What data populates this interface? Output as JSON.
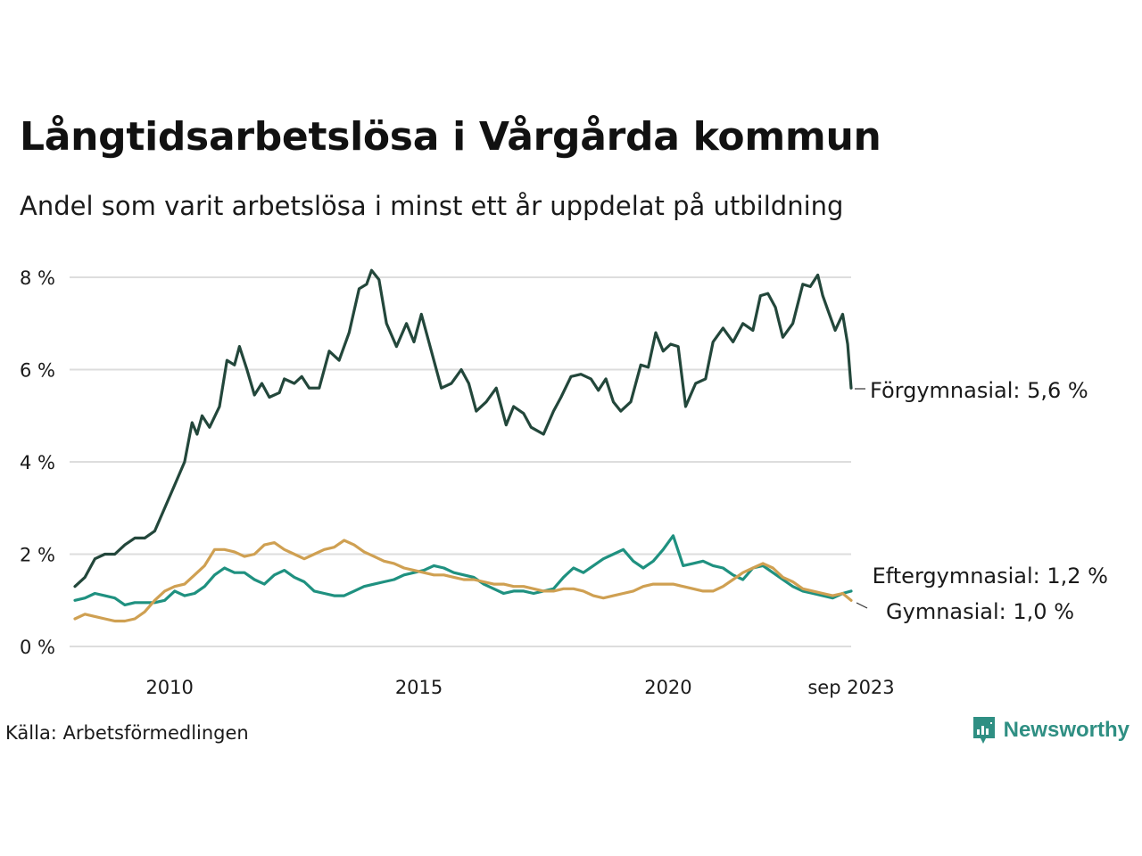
{
  "header": {
    "title": "Långtidsarbetslösa i Vårgårda kommun",
    "subtitle": "Andel som varit arbetslösa i minst ett år uppdelat på utbildning"
  },
  "footer": {
    "source": "Källa: Arbetsförmedlingen",
    "brand": "Newsworthy",
    "brand_icon": "newsworthy-logo-icon"
  },
  "colors": {
    "forgymnasial": "#23473b",
    "eftergymnasial": "#1f9180",
    "gymnasial": "#cfa052",
    "grid": "#dddddd"
  },
  "chart_data": {
    "type": "line",
    "title": "Långtidsarbetslösa i Vårgårda kommun",
    "subtitle": "Andel som varit arbetslösa i minst ett år uppdelat på utbildning",
    "xlabel": "",
    "ylabel": "",
    "x_range": [
      2008.1,
      2023.67
    ],
    "ylim": [
      0,
      8
    ],
    "y_ticks": [
      0,
      2,
      4,
      6,
      8
    ],
    "y_tick_labels": [
      "0 %",
      "2 %",
      "4 %",
      "6 %",
      "8 %"
    ],
    "x_ticks": [
      2010,
      2015,
      2020,
      2023.67
    ],
    "x_tick_labels": [
      "2010",
      "2015",
      "2020",
      "sep 2023"
    ],
    "grid": "horizontal",
    "series": [
      {
        "name": "Förgymnasial",
        "end_label": "Förgymnasial: 5,6 %",
        "color_key": "forgymnasial",
        "points": [
          [
            2008.1,
            1.3
          ],
          [
            2008.3,
            1.5
          ],
          [
            2008.5,
            1.9
          ],
          [
            2008.7,
            2.0
          ],
          [
            2008.9,
            2.0
          ],
          [
            2009.1,
            2.2
          ],
          [
            2009.3,
            2.35
          ],
          [
            2009.5,
            2.35
          ],
          [
            2009.7,
            2.5
          ],
          [
            2009.9,
            3.0
          ],
          [
            2010.1,
            3.5
          ],
          [
            2010.3,
            4.0
          ],
          [
            2010.45,
            4.85
          ],
          [
            2010.55,
            4.6
          ],
          [
            2010.65,
            5.0
          ],
          [
            2010.8,
            4.75
          ],
          [
            2011.0,
            5.2
          ],
          [
            2011.15,
            6.2
          ],
          [
            2011.3,
            6.1
          ],
          [
            2011.4,
            6.5
          ],
          [
            2011.55,
            6.0
          ],
          [
            2011.7,
            5.45
          ],
          [
            2011.85,
            5.7
          ],
          [
            2012.0,
            5.4
          ],
          [
            2012.2,
            5.5
          ],
          [
            2012.3,
            5.8
          ],
          [
            2012.5,
            5.7
          ],
          [
            2012.65,
            5.85
          ],
          [
            2012.8,
            5.6
          ],
          [
            2013.0,
            5.6
          ],
          [
            2013.2,
            6.4
          ],
          [
            2013.4,
            6.2
          ],
          [
            2013.6,
            6.8
          ],
          [
            2013.8,
            7.75
          ],
          [
            2013.95,
            7.85
          ],
          [
            2014.05,
            8.15
          ],
          [
            2014.2,
            7.95
          ],
          [
            2014.35,
            7.0
          ],
          [
            2014.55,
            6.5
          ],
          [
            2014.75,
            7.0
          ],
          [
            2014.9,
            6.6
          ],
          [
            2015.05,
            7.2
          ],
          [
            2015.25,
            6.4
          ],
          [
            2015.45,
            5.6
          ],
          [
            2015.65,
            5.7
          ],
          [
            2015.85,
            6.0
          ],
          [
            2016.0,
            5.7
          ],
          [
            2016.15,
            5.1
          ],
          [
            2016.35,
            5.3
          ],
          [
            2016.55,
            5.6
          ],
          [
            2016.75,
            4.8
          ],
          [
            2016.9,
            5.2
          ],
          [
            2017.1,
            5.05
          ],
          [
            2017.25,
            4.75
          ],
          [
            2017.5,
            4.6
          ],
          [
            2017.7,
            5.1
          ],
          [
            2017.85,
            5.4
          ],
          [
            2018.05,
            5.85
          ],
          [
            2018.25,
            5.9
          ],
          [
            2018.45,
            5.8
          ],
          [
            2018.6,
            5.55
          ],
          [
            2018.75,
            5.8
          ],
          [
            2018.9,
            5.3
          ],
          [
            2019.05,
            5.1
          ],
          [
            2019.25,
            5.3
          ],
          [
            2019.45,
            6.1
          ],
          [
            2019.6,
            6.05
          ],
          [
            2019.75,
            6.8
          ],
          [
            2019.9,
            6.4
          ],
          [
            2020.05,
            6.55
          ],
          [
            2020.2,
            6.5
          ],
          [
            2020.35,
            5.2
          ],
          [
            2020.55,
            5.7
          ],
          [
            2020.75,
            5.8
          ],
          [
            2020.9,
            6.6
          ],
          [
            2021.1,
            6.9
          ],
          [
            2021.3,
            6.6
          ],
          [
            2021.5,
            7.0
          ],
          [
            2021.7,
            6.85
          ],
          [
            2021.85,
            7.6
          ],
          [
            2022.0,
            7.65
          ],
          [
            2022.15,
            7.35
          ],
          [
            2022.3,
            6.7
          ],
          [
            2022.5,
            7.0
          ],
          [
            2022.7,
            7.85
          ],
          [
            2022.85,
            7.8
          ],
          [
            2023.0,
            8.05
          ],
          [
            2023.1,
            7.6
          ],
          [
            2023.2,
            7.3
          ],
          [
            2023.35,
            6.85
          ],
          [
            2023.5,
            7.2
          ],
          [
            2023.6,
            6.55
          ],
          [
            2023.67,
            5.6
          ]
        ]
      },
      {
        "name": "Eftergymnasial",
        "end_label": "Eftergymnasial: 1,2 %",
        "color_key": "eftergymnasial",
        "points": [
          [
            2008.1,
            1.0
          ],
          [
            2008.3,
            1.05
          ],
          [
            2008.5,
            1.15
          ],
          [
            2008.7,
            1.1
          ],
          [
            2008.9,
            1.05
          ],
          [
            2009.1,
            0.9
          ],
          [
            2009.3,
            0.95
          ],
          [
            2009.5,
            0.95
          ],
          [
            2009.7,
            0.95
          ],
          [
            2009.9,
            1.0
          ],
          [
            2010.1,
            1.2
          ],
          [
            2010.3,
            1.1
          ],
          [
            2010.5,
            1.15
          ],
          [
            2010.7,
            1.3
          ],
          [
            2010.9,
            1.55
          ],
          [
            2011.1,
            1.7
          ],
          [
            2011.3,
            1.6
          ],
          [
            2011.5,
            1.6
          ],
          [
            2011.7,
            1.45
          ],
          [
            2011.9,
            1.35
          ],
          [
            2012.1,
            1.55
          ],
          [
            2012.3,
            1.65
          ],
          [
            2012.5,
            1.5
          ],
          [
            2012.7,
            1.4
          ],
          [
            2012.9,
            1.2
          ],
          [
            2013.1,
            1.15
          ],
          [
            2013.3,
            1.1
          ],
          [
            2013.5,
            1.1
          ],
          [
            2013.7,
            1.2
          ],
          [
            2013.9,
            1.3
          ],
          [
            2014.1,
            1.35
          ],
          [
            2014.3,
            1.4
          ],
          [
            2014.5,
            1.45
          ],
          [
            2014.7,
            1.55
          ],
          [
            2014.9,
            1.6
          ],
          [
            2015.1,
            1.65
          ],
          [
            2015.3,
            1.75
          ],
          [
            2015.5,
            1.7
          ],
          [
            2015.7,
            1.6
          ],
          [
            2015.9,
            1.55
          ],
          [
            2016.1,
            1.5
          ],
          [
            2016.3,
            1.35
          ],
          [
            2016.5,
            1.25
          ],
          [
            2016.7,
            1.15
          ],
          [
            2016.9,
            1.2
          ],
          [
            2017.1,
            1.2
          ],
          [
            2017.3,
            1.15
          ],
          [
            2017.5,
            1.2
          ],
          [
            2017.7,
            1.25
          ],
          [
            2017.9,
            1.5
          ],
          [
            2018.1,
            1.7
          ],
          [
            2018.3,
            1.6
          ],
          [
            2018.5,
            1.75
          ],
          [
            2018.7,
            1.9
          ],
          [
            2018.9,
            2.0
          ],
          [
            2019.1,
            2.1
          ],
          [
            2019.3,
            1.85
          ],
          [
            2019.5,
            1.7
          ],
          [
            2019.7,
            1.85
          ],
          [
            2019.9,
            2.1
          ],
          [
            2020.1,
            2.4
          ],
          [
            2020.3,
            1.75
          ],
          [
            2020.5,
            1.8
          ],
          [
            2020.7,
            1.85
          ],
          [
            2020.9,
            1.75
          ],
          [
            2021.1,
            1.7
          ],
          [
            2021.3,
            1.55
          ],
          [
            2021.5,
            1.45
          ],
          [
            2021.7,
            1.7
          ],
          [
            2021.9,
            1.75
          ],
          [
            2022.1,
            1.6
          ],
          [
            2022.3,
            1.45
          ],
          [
            2022.5,
            1.3
          ],
          [
            2022.7,
            1.2
          ],
          [
            2022.9,
            1.15
          ],
          [
            2023.1,
            1.1
          ],
          [
            2023.3,
            1.05
          ],
          [
            2023.5,
            1.15
          ],
          [
            2023.67,
            1.2
          ]
        ]
      },
      {
        "name": "Gymnasial",
        "end_label": "Gymnasial: 1,0 %",
        "color_key": "gymnasial",
        "points": [
          [
            2008.1,
            0.6
          ],
          [
            2008.3,
            0.7
          ],
          [
            2008.5,
            0.65
          ],
          [
            2008.7,
            0.6
          ],
          [
            2008.9,
            0.55
          ],
          [
            2009.1,
            0.55
          ],
          [
            2009.3,
            0.6
          ],
          [
            2009.5,
            0.75
          ],
          [
            2009.7,
            1.0
          ],
          [
            2009.9,
            1.2
          ],
          [
            2010.1,
            1.3
          ],
          [
            2010.3,
            1.35
          ],
          [
            2010.5,
            1.55
          ],
          [
            2010.7,
            1.75
          ],
          [
            2010.9,
            2.1
          ],
          [
            2011.1,
            2.1
          ],
          [
            2011.3,
            2.05
          ],
          [
            2011.5,
            1.95
          ],
          [
            2011.7,
            2.0
          ],
          [
            2011.9,
            2.2
          ],
          [
            2012.1,
            2.25
          ],
          [
            2012.3,
            2.1
          ],
          [
            2012.5,
            2.0
          ],
          [
            2012.7,
            1.9
          ],
          [
            2012.9,
            2.0
          ],
          [
            2013.1,
            2.1
          ],
          [
            2013.3,
            2.15
          ],
          [
            2013.5,
            2.3
          ],
          [
            2013.7,
            2.2
          ],
          [
            2013.9,
            2.05
          ],
          [
            2014.1,
            1.95
          ],
          [
            2014.3,
            1.85
          ],
          [
            2014.5,
            1.8
          ],
          [
            2014.7,
            1.7
          ],
          [
            2014.9,
            1.65
          ],
          [
            2015.1,
            1.6
          ],
          [
            2015.3,
            1.55
          ],
          [
            2015.5,
            1.55
          ],
          [
            2015.7,
            1.5
          ],
          [
            2015.9,
            1.45
          ],
          [
            2016.1,
            1.45
          ],
          [
            2016.3,
            1.4
          ],
          [
            2016.5,
            1.35
          ],
          [
            2016.7,
            1.35
          ],
          [
            2016.9,
            1.3
          ],
          [
            2017.1,
            1.3
          ],
          [
            2017.3,
            1.25
          ],
          [
            2017.5,
            1.2
          ],
          [
            2017.7,
            1.2
          ],
          [
            2017.9,
            1.25
          ],
          [
            2018.1,
            1.25
          ],
          [
            2018.3,
            1.2
          ],
          [
            2018.5,
            1.1
          ],
          [
            2018.7,
            1.05
          ],
          [
            2018.9,
            1.1
          ],
          [
            2019.1,
            1.15
          ],
          [
            2019.3,
            1.2
          ],
          [
            2019.5,
            1.3
          ],
          [
            2019.7,
            1.35
          ],
          [
            2019.9,
            1.35
          ],
          [
            2020.1,
            1.35
          ],
          [
            2020.3,
            1.3
          ],
          [
            2020.5,
            1.25
          ],
          [
            2020.7,
            1.2
          ],
          [
            2020.9,
            1.2
          ],
          [
            2021.1,
            1.3
          ],
          [
            2021.3,
            1.45
          ],
          [
            2021.5,
            1.6
          ],
          [
            2021.7,
            1.7
          ],
          [
            2021.9,
            1.8
          ],
          [
            2022.1,
            1.7
          ],
          [
            2022.3,
            1.5
          ],
          [
            2022.5,
            1.4
          ],
          [
            2022.7,
            1.25
          ],
          [
            2022.9,
            1.2
          ],
          [
            2023.1,
            1.15
          ],
          [
            2023.3,
            1.1
          ],
          [
            2023.5,
            1.15
          ],
          [
            2023.67,
            1.0
          ]
        ]
      }
    ]
  }
}
